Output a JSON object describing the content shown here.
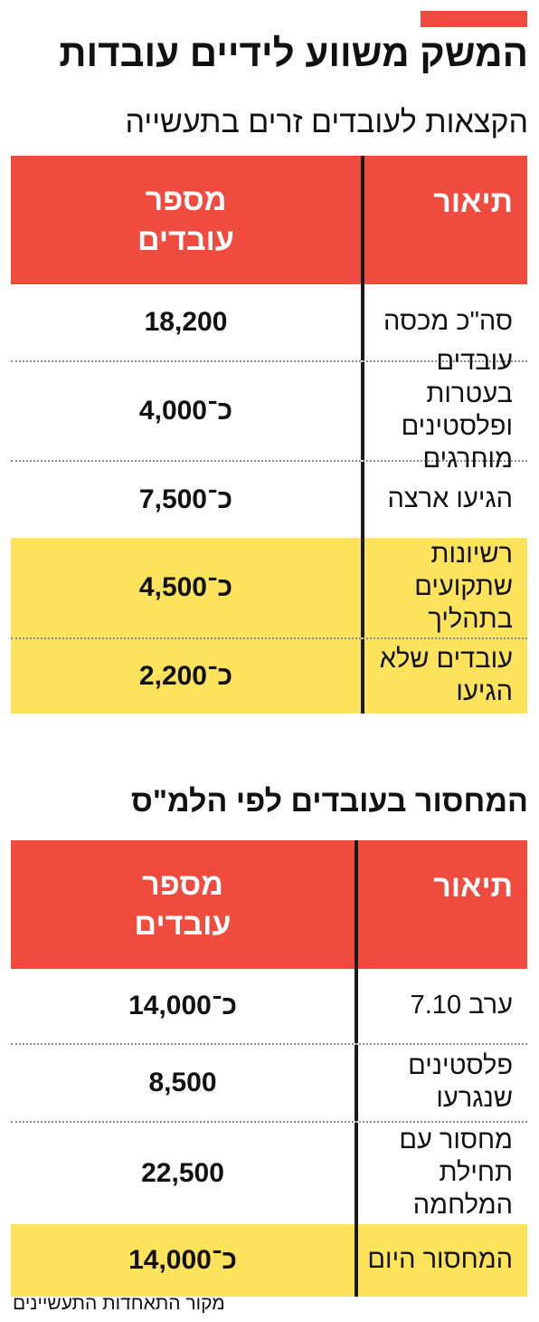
{
  "main_title": "המשק משווע לידיים עובדות",
  "colors": {
    "accent": "#f04b3f",
    "highlight": "#fde25c",
    "text": "#111111"
  },
  "section1": {
    "title": "הקצאות לעובדים זרים בתעשייה",
    "header": {
      "desc": "תיאור",
      "num_line1": "מספר",
      "num_line2": "עובדים"
    },
    "rows": [
      {
        "desc": "סה\"כ מכסה",
        "num": "18,200",
        "highlight": false
      },
      {
        "desc_line1": "עובדים בעטרות",
        "desc_line2": "ופלסטינים מוחרגים",
        "num": "כ־4,000",
        "highlight": false
      },
      {
        "desc": "הגיעו ארצה",
        "num": "כ־7,500",
        "highlight": false
      },
      {
        "desc_line1": "רשיונות שתקועים",
        "desc_line2": "בתהליך",
        "num": "כ־4,500",
        "highlight": true
      },
      {
        "desc": "עובדים שלא הגיעו",
        "num": "כ־2,200",
        "highlight": true
      }
    ]
  },
  "section2": {
    "title": "המחסור בעובדים לפי הלמ\"ס",
    "header": {
      "desc": "תיאור",
      "num_line1": "מספר",
      "num_line2": "עובדים"
    },
    "rows": [
      {
        "desc": "ערב 7.10",
        "num": "כ־14,000",
        "highlight": false
      },
      {
        "desc": "פלסטינים שנגרעו",
        "num": "8,500",
        "highlight": false
      },
      {
        "desc_line1": "מחסור עם תחילת",
        "desc_line2": "המלחמה",
        "num": "22,500",
        "highlight": false
      },
      {
        "desc": "המחסור היום",
        "num": "כ־14,000",
        "highlight": true
      }
    ]
  },
  "source": "מקור התאחדות התעשיינים"
}
